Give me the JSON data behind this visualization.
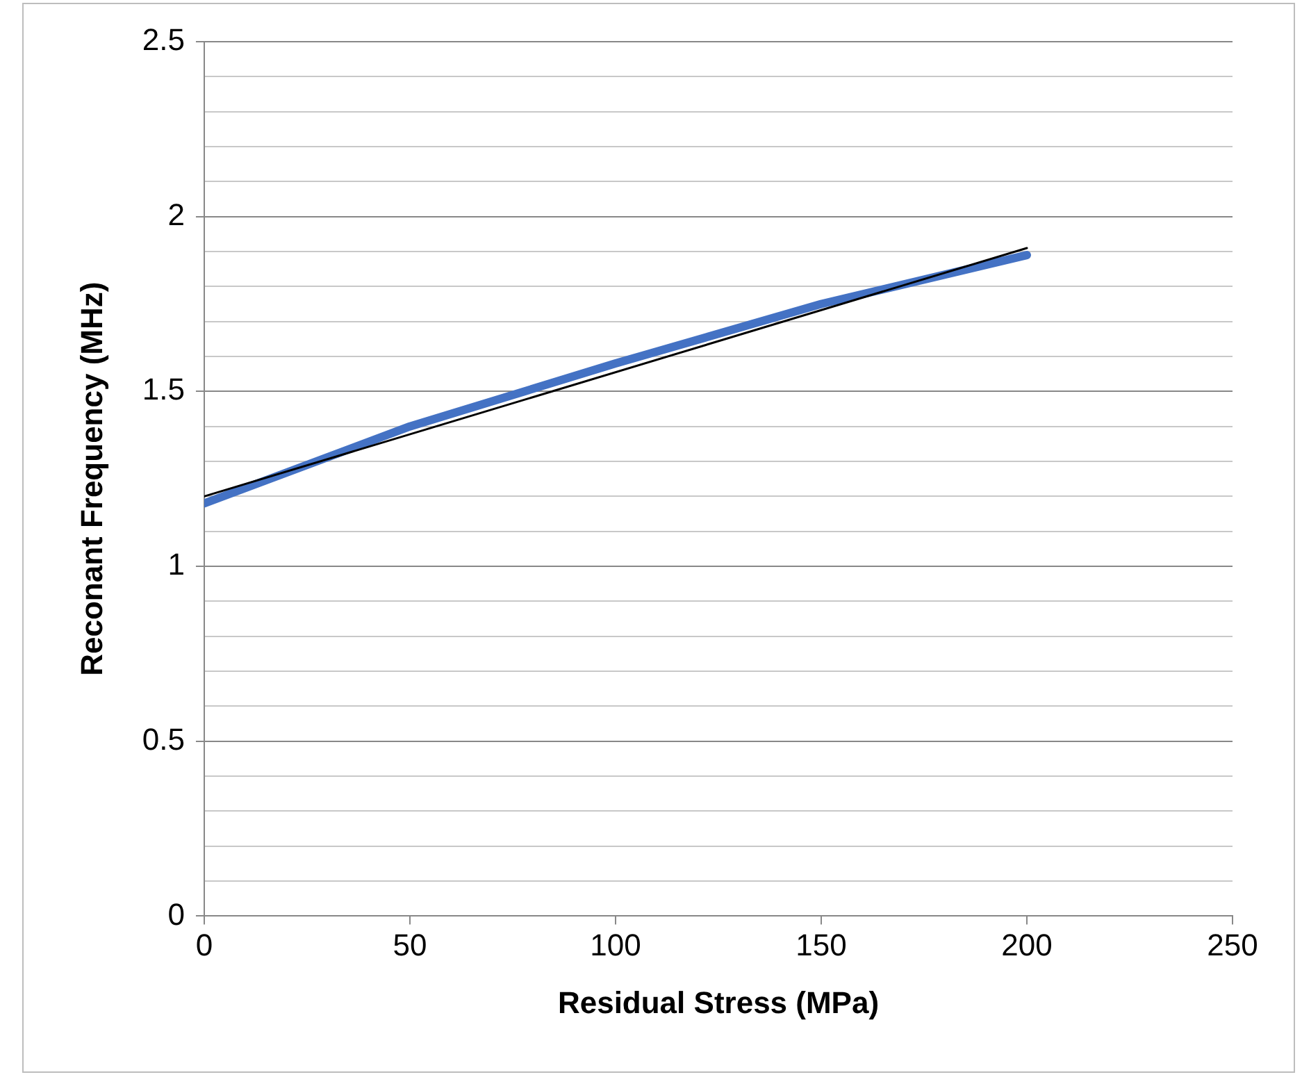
{
  "chart_data": {
    "type": "line",
    "xlabel": "Residual Stress (MPa)",
    "ylabel": "Reconant Frequency (MHz)",
    "xlim": [
      0,
      250
    ],
    "xticks": [
      0,
      50,
      100,
      150,
      200,
      250
    ],
    "ylim": [
      0,
      2.5
    ],
    "yticks": [
      0,
      {
        "value": 0.1,
        "label": null
      },
      {
        "value": 0.2,
        "label": null
      },
      {
        "value": 0.3,
        "label": null
      },
      {
        "value": 0.4,
        "label": null
      },
      0.5,
      {
        "value": 0.6,
        "label": null
      },
      {
        "value": 0.7,
        "label": null
      },
      {
        "value": 0.8,
        "label": null
      },
      {
        "value": 0.9,
        "label": null
      },
      1,
      {
        "value": 1.1,
        "label": null
      },
      {
        "value": 1.2,
        "label": null
      },
      {
        "value": 1.3,
        "label": null
      },
      {
        "value": 1.4,
        "label": null
      },
      1.5,
      {
        "value": 1.6,
        "label": null
      },
      {
        "value": 1.7,
        "label": null
      },
      {
        "value": 1.8,
        "label": null
      },
      {
        "value": 1.9,
        "label": null
      },
      2,
      {
        "value": 2.1,
        "label": null
      },
      {
        "value": 2.2,
        "label": null
      },
      {
        "value": 2.3,
        "label": null
      },
      {
        "value": 2.4,
        "label": null
      },
      2.5
    ],
    "grid": "y",
    "legend": false,
    "marker": "none",
    "series": [
      {
        "color": "#4472c4",
        "x": [
          0,
          50,
          100,
          150,
          200
        ],
        "values": [
          1.18,
          1.4,
          1.58,
          1.75,
          1.89
        ]
      },
      {
        "color": "#000000",
        "x": [
          0,
          200
        ],
        "values": [
          1.2,
          1.91
        ]
      }
    ]
  }
}
